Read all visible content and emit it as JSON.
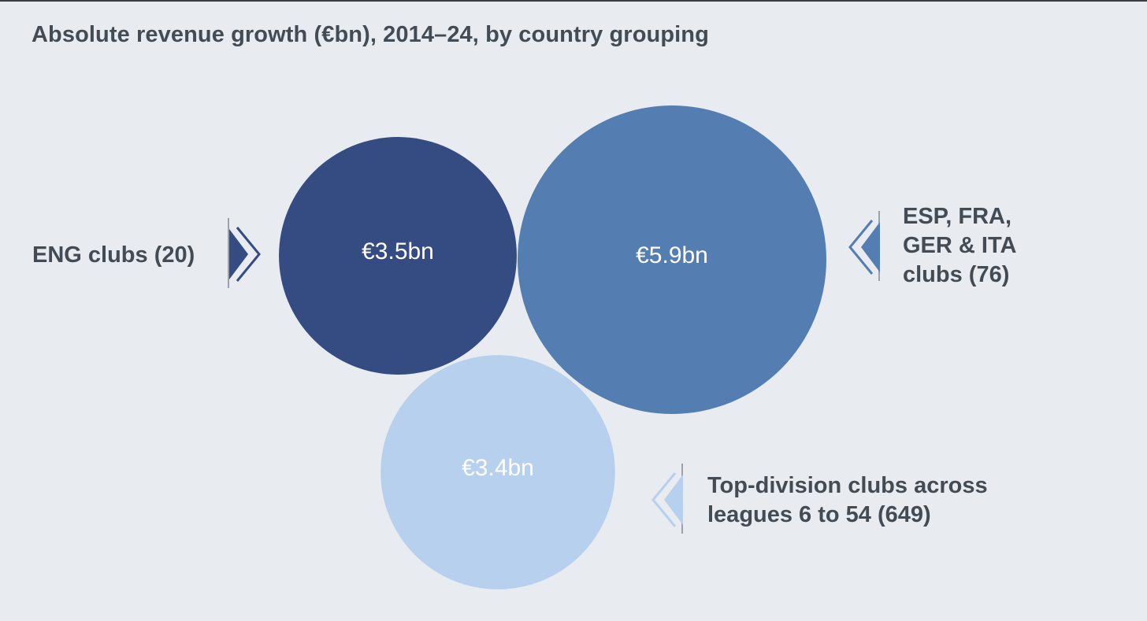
{
  "chart_data": {
    "type": "bubble",
    "title": "Absolute revenue growth (€bn), 2014–24, by country grouping",
    "series": [
      {
        "key": "eng",
        "label_lines": [
          "ENG clubs (20)"
        ],
        "value": 3.5,
        "value_label": "€3.5bn",
        "color": "#344c82"
      },
      {
        "key": "big4",
        "label_lines": [
          "ESP, FRA,",
          "GER & ITA",
          "clubs (76)"
        ],
        "value": 5.9,
        "value_label": "€5.9bn",
        "color": "#547eb2"
      },
      {
        "key": "rest",
        "label_lines": [
          "Top-division clubs across",
          "leagues 6 to 54 (649)"
        ],
        "value": 3.4,
        "value_label": "€3.4bn",
        "color": "#b6d0ee"
      }
    ]
  }
}
